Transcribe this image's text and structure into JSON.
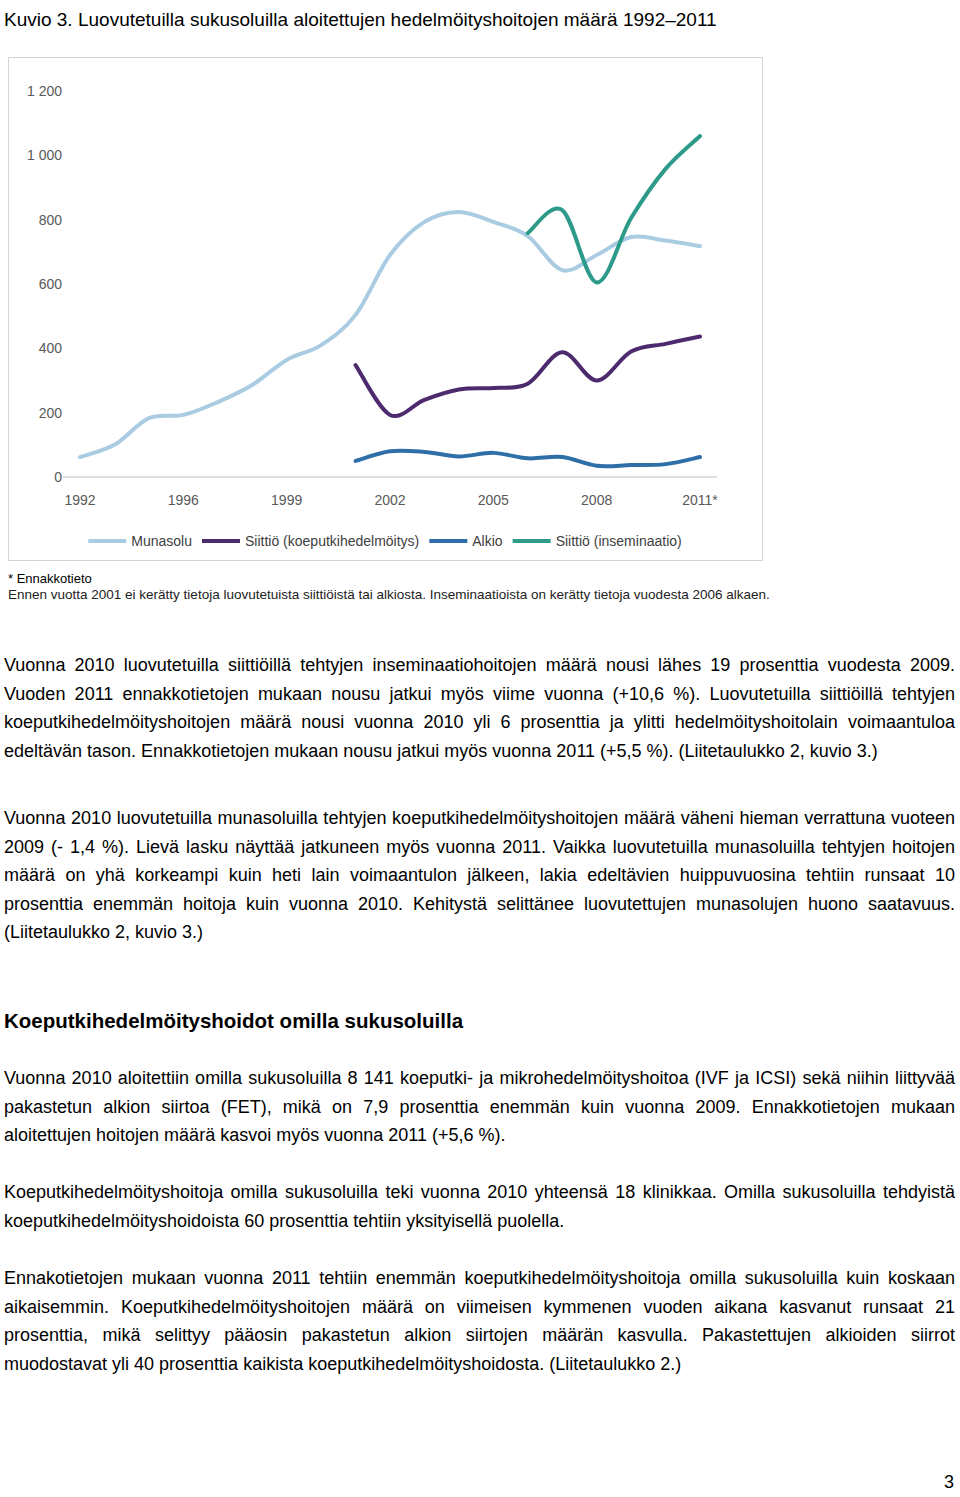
{
  "figure_title": "Kuvio 3. Luovutetuilla sukusoluilla aloitettujen hedelmöityshoitojen määrä 1992–2011",
  "chart_data": {
    "type": "line",
    "categories": [
      "1992",
      null,
      null,
      "1996",
      null,
      null,
      "1999",
      null,
      null,
      "2002",
      null,
      null,
      "2005",
      null,
      null,
      "2008",
      null,
      null,
      "2011*"
    ],
    "series": [
      {
        "name": "Munasolu",
        "color": "#a9cce3",
        "values": [
          62,
          100,
          183,
          193,
          233,
          286,
          364,
          410,
          504,
          690,
          793,
          824,
          793,
          749,
          643,
          690,
          746,
          735,
          718
        ]
      },
      {
        "name": "Siittiö (koeputkihedelmöitys)",
        "color": "#4d2a6e",
        "values": [
          null,
          null,
          null,
          null,
          null,
          null,
          null,
          null,
          348,
          193,
          240,
          272,
          277,
          290,
          388,
          300,
          390,
          414,
          437
        ]
      },
      {
        "name": "Alkio",
        "color": "#2e6fa8",
        "values": [
          null,
          null,
          null,
          null,
          null,
          null,
          null,
          null,
          50,
          80,
          78,
          64,
          75,
          58,
          62,
          35,
          37,
          40,
          62
        ]
      },
      {
        "name": "Siittiö (inseminaatio)",
        "color": "#2e9a8a",
        "values": [
          null,
          null,
          null,
          null,
          null,
          null,
          null,
          null,
          null,
          null,
          null,
          null,
          null,
          758,
          830,
          605,
          805,
          958,
          1060
        ]
      }
    ],
    "ylim": [
      0,
      1200
    ],
    "yticks": [
      0,
      200,
      400,
      600,
      800,
      {
        "value": 1000,
        "label": "1 000"
      },
      {
        "value": 1200,
        "label": "1 200"
      }
    ],
    "grid": false,
    "legend": "bottom"
  },
  "footnote": "* Ennakkotieto",
  "note": "Ennen vuotta 2001 ei kerätty tietoja luovutetuista siittiöistä tai alkiosta. Inseminaatioista on kerätty tietoja vuodesta 2006 alkaen.",
  "sections": [
    {
      "paragraphs": [
        "Vuonna 2010 luovutetuilla siittiöillä tehtyjen inseminaatiohoitojen määrä nousi lähes 19 prosenttia vuodesta 2009. Vuoden 2011 ennakkotietojen mukaan nousu jatkui myös viime vuonna (+10,6 %). Luovutetuilla siittiöillä tehtyjen koeputkihedelmöityshoitojen määrä nousi vuonna 2010 yli 6 prosenttia ja ylitti hedelmöityshoitolain voimaantuloa edeltävän tason. Ennakkotietojen mukaan nousu jatkui myös vuonna 2011 (+5,5 %). (Liitetaulukko 2, kuvio 3.)",
        "Vuonna 2010 luovutetuilla munasoluilla tehtyjen koeputkihedelmöityshoitojen määrä väheni hieman verrattuna vuoteen 2009 (- 1,4 %). Lievä lasku näyttää jatkuneen myös vuonna 2011. Vaikka luovutetuilla munasoluilla tehtyjen hoitojen määrä on yhä korkeampi kuin heti lain voimaantulon jälkeen, lakia edeltävien huippuvuosina tehtiin runsaat 10 prosenttia enemmän hoitoja kuin vuonna 2010. Kehitystä selittänee luovutettujen munasolujen huono saatavuus. (Liitetaulukko 2, kuvio 3.)"
      ]
    },
    {
      "heading": "Koeputkihedelmöityshoidot omilla sukusoluilla",
      "paragraphs": [
        "Vuonna 2010 aloitettiin omilla sukusoluilla 8 141 koeputki- ja mikrohedelmöityshoitoa (IVF ja ICSI) sekä niihin liittyvää pakastetun alkion siirtoa (FET), mikä on 7,9 prosenttia enemmän kuin vuonna 2009. Ennakkotietojen mukaan aloitettujen hoitojen määrä kasvoi myös vuonna 2011 (+5,6 %).",
        "Koeputkihedelmöityshoitoja omilla sukusoluilla teki vuonna 2010 yhteensä 18 klinikkaa. Omilla sukusoluilla tehdyistä koeputkihedelmöityshoidoista 60 prosenttia tehtiin yksityisellä puolella.",
        "Ennakotietojen mukaan vuonna 2011 tehtiin enemmän koeputkihedelmöityshoitoja omilla sukusoluilla kuin koskaan aikaisemmin. Koeputkihedelmöityshoitojen määrä on viimeisen kymmenen vuoden aikana kasvanut runsaat 21 prosenttia, mikä selittyy pääosin pakastetun alkion siirtojen määrän kasvulla. Pakastettujen alkioiden siirrot muodostavat yli 40 prosenttia kaikista koeputkihedelmöityshoidosta. (Liitetaulukko 2.)"
      ]
    }
  ],
  "page_number": "3"
}
